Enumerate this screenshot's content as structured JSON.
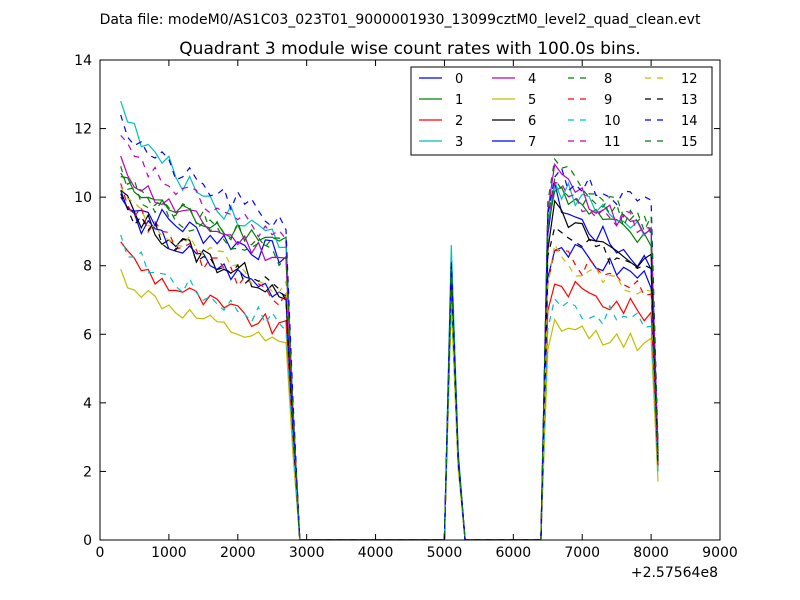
{
  "figure": {
    "suptitle": "Data file: modeM0/AS1C03_023T01_9000001930_13099cztM0_level2_quad_clean.evt",
    "offset_label": "+2.57564e8"
  },
  "chart_data": {
    "type": "line",
    "title": "Quadrant 3 module wise count rates with 100.0s bins.",
    "xlabel": "",
    "ylabel": "",
    "xlim": [
      0,
      9000
    ],
    "ylim": [
      0,
      14
    ],
    "xticks": [
      0,
      1000,
      2000,
      3000,
      4000,
      5000,
      6000,
      7000,
      8000,
      9000
    ],
    "xtick_labels": [
      "0",
      "1000",
      "2000",
      "3000",
      "4000",
      "5000",
      "6000",
      "7000",
      "8000",
      "9000"
    ],
    "yticks": [
      0,
      2,
      4,
      6,
      8,
      10,
      12,
      14
    ],
    "ytick_labels": [
      "0",
      "2",
      "4",
      "6",
      "8",
      "10",
      "12",
      "14"
    ],
    "x_offset": 257564000,
    "bin_width_s": 100,
    "grid": false,
    "legend_position": "top-right",
    "legend_columns": 4,
    "series": [
      {
        "name": "0",
        "color": "#0000ff",
        "dash": "solid",
        "profile": {
          "seg1": [
            10.2,
            8.3
          ],
          "spike": 8.3,
          "seg2": [
            10.1,
            8.0
          ],
          "end": 2.1,
          "noise": 0.35
        }
      },
      {
        "name": "1",
        "color": "#008000",
        "dash": "solid",
        "profile": {
          "seg1": [
            10.6,
            8.7
          ],
          "spike": 7.9,
          "seg2": [
            10.4,
            8.6
          ],
          "end": 2.6,
          "noise": 0.3
        }
      },
      {
        "name": "2",
        "color": "#ff0000",
        "dash": "solid",
        "profile": {
          "seg1": [
            8.7,
            6.1
          ],
          "spike": 7.4,
          "seg2": [
            7.6,
            6.6
          ],
          "end": 2.0,
          "noise": 0.3
        }
      },
      {
        "name": "3",
        "color": "#00bfbf",
        "dash": "solid",
        "profile": {
          "seg1": [
            12.8,
            8.7
          ],
          "spike": 8.6,
          "seg2": [
            10.5,
            9.0
          ],
          "end": 2.5,
          "noise": 0.35
        }
      },
      {
        "name": "4",
        "color": "#bf00bf",
        "dash": "solid",
        "profile": {
          "seg1": [
            11.2,
            8.2
          ],
          "spike": 7.8,
          "seg2": [
            10.9,
            8.9
          ],
          "end": 2.4,
          "noise": 0.3
        }
      },
      {
        "name": "5",
        "color": "#bfbf00",
        "dash": "solid",
        "profile": {
          "seg1": [
            7.9,
            5.6
          ],
          "spike": 6.9,
          "seg2": [
            6.3,
            5.7
          ],
          "end": 1.7,
          "noise": 0.25
        }
      },
      {
        "name": "6",
        "color": "#000000",
        "dash": "solid",
        "profile": {
          "seg1": [
            10.2,
            7.3
          ],
          "spike": 8.0,
          "seg2": [
            9.6,
            8.0
          ],
          "end": 2.3,
          "noise": 0.35
        }
      },
      {
        "name": "7",
        "color": "#0000ff",
        "dash": "solid",
        "profile": {
          "seg1": [
            10.0,
            7.2
          ],
          "spike": 7.6,
          "seg2": [
            8.7,
            7.6
          ],
          "end": 2.2,
          "noise": 0.3
        }
      },
      {
        "name": "8",
        "color": "#008000",
        "dash": "dashed",
        "profile": {
          "seg1": [
            10.7,
            8.6
          ],
          "spike": 7.7,
          "seg2": [
            10.7,
            9.1
          ],
          "end": 2.7,
          "noise": 0.3
        }
      },
      {
        "name": "9",
        "color": "#ff0000",
        "dash": "dashed",
        "profile": {
          "seg1": [
            10.4,
            7.0
          ],
          "spike": 7.5,
          "seg2": [
            8.5,
            7.3
          ],
          "end": 2.2,
          "noise": 0.3
        }
      },
      {
        "name": "10",
        "color": "#00bfbf",
        "dash": "dashed",
        "profile": {
          "seg1": [
            8.9,
            6.3
          ],
          "spike": 7.2,
          "seg2": [
            7.0,
            6.3
          ],
          "end": 2.0,
          "noise": 0.3
        }
      },
      {
        "name": "11",
        "color": "#bf00bf",
        "dash": "dashed",
        "profile": {
          "seg1": [
            11.8,
            8.8
          ],
          "spike": 7.9,
          "seg2": [
            10.3,
            9.1
          ],
          "end": 2.6,
          "noise": 0.3
        }
      },
      {
        "name": "12",
        "color": "#bfbf00",
        "dash": "dashed",
        "profile": {
          "seg1": [
            10.3,
            7.4
          ],
          "spike": 7.0,
          "seg2": [
            8.4,
            7.2
          ],
          "end": 2.1,
          "noise": 0.3
        }
      },
      {
        "name": "13",
        "color": "#000000",
        "dash": "dashed",
        "profile": {
          "seg1": [
            10.1,
            7.3
          ],
          "spike": 7.6,
          "seg2": [
            9.4,
            7.8
          ],
          "end": 2.2,
          "noise": 0.3
        }
      },
      {
        "name": "14",
        "color": "#0000ff",
        "dash": "dashed",
        "profile": {
          "seg1": [
            12.4,
            9.2
          ],
          "spike": 8.1,
          "seg2": [
            10.8,
            9.7
          ],
          "end": 2.8,
          "noise": 0.35
        }
      },
      {
        "name": "15",
        "color": "#008000",
        "dash": "dashed",
        "profile": {
          "seg1": [
            10.9,
            8.2
          ],
          "spike": 7.9,
          "seg2": [
            11.2,
            9.2
          ],
          "end": 2.6,
          "noise": 0.3
        }
      }
    ],
    "time_structure": {
      "seg1_x": [
        300,
        2700
      ],
      "fall_x": [
        2800,
        2900
      ],
      "zero1_x": [
        2900,
        5000
      ],
      "spike_x": 5100,
      "zero2_x": [
        5300,
        6400
      ],
      "rise_x": 6500,
      "seg2_x": [
        6600,
        8000
      ],
      "end_x": 8100
    }
  }
}
